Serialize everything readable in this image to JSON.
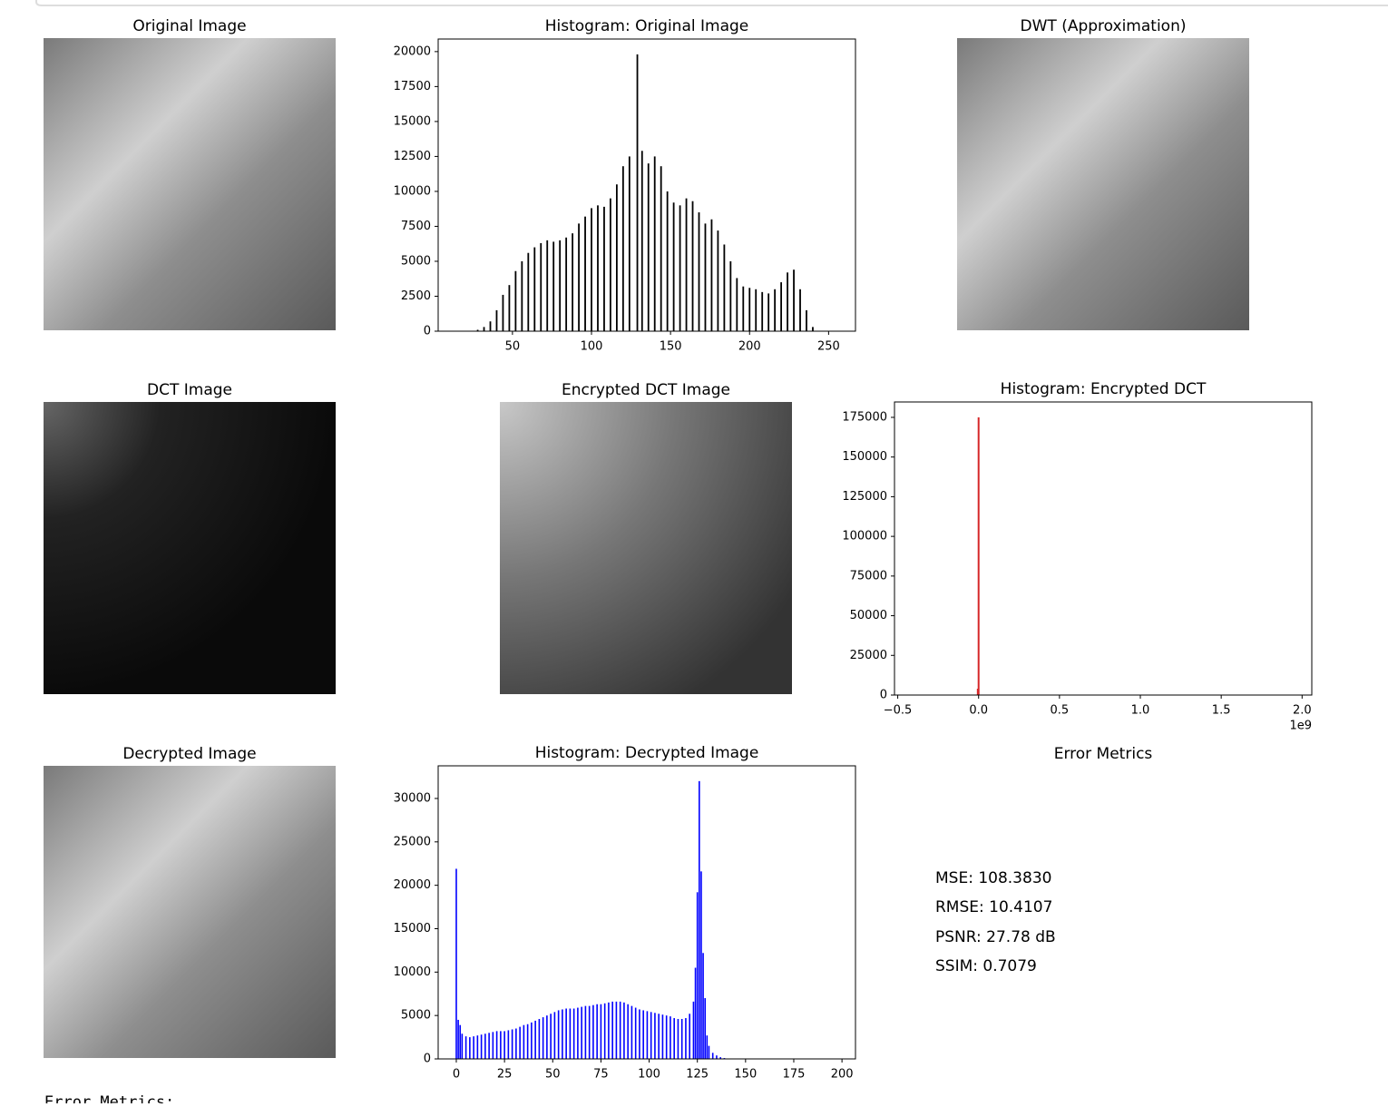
{
  "image_panels": [
    {
      "title": "Original Image"
    },
    {
      "title": "DWT (Approximation)"
    },
    {
      "title": "DCT Image"
    },
    {
      "title": "Encrypted DCT Image"
    },
    {
      "title": "Decrypted Image"
    }
  ],
  "chart_data": [
    {
      "type": "bar",
      "title": "Histogram: Original Image",
      "color": "#000000",
      "x": [
        28,
        32,
        36,
        40,
        44,
        48,
        52,
        56,
        60,
        64,
        68,
        72,
        76,
        80,
        84,
        88,
        92,
        96,
        100,
        104,
        108,
        112,
        116,
        120,
        124,
        129,
        132,
        136,
        140,
        144,
        148,
        152,
        156,
        160,
        164,
        168,
        172,
        176,
        180,
        184,
        188,
        192,
        196,
        200,
        204,
        208,
        212,
        216,
        220,
        224,
        228,
        232,
        236,
        240
      ],
      "values": [
        100,
        300,
        700,
        1500,
        2600,
        3300,
        4300,
        5000,
        5600,
        6000,
        6300,
        6500,
        6400,
        6500,
        6700,
        7000,
        7700,
        8200,
        8800,
        9000,
        8900,
        9500,
        10500,
        11800,
        12500,
        19800,
        12900,
        12000,
        12500,
        11800,
        10000,
        9200,
        9000,
        9500,
        9300,
        8500,
        7700,
        8000,
        7200,
        6200,
        5000,
        3800,
        3200,
        3100,
        3000,
        2800,
        2700,
        3000,
        3500,
        4200,
        4400,
        3000,
        1500,
        300
      ],
      "xlim": [
        3,
        267
      ],
      "ylim": [
        0,
        20900
      ],
      "xticks": [
        50,
        100,
        150,
        200,
        250
      ],
      "yticks": [
        0,
        2500,
        5000,
        7500,
        10000,
        12500,
        15000,
        17500,
        20000
      ]
    },
    {
      "type": "bar",
      "title": "Histogram: Encrypted DCT",
      "color": "#d62728",
      "x": [
        -0.005,
        0.0
      ],
      "values": [
        4000,
        175000
      ],
      "xlim": [
        -0.52,
        2.06
      ],
      "ylim": [
        0,
        184700
      ],
      "x_offset_label": "1e9",
      "xticks": [
        {
          "value": -0.5,
          "label": "−0.5"
        },
        {
          "value": 0,
          "label": "0.0"
        },
        0.5,
        {
          "value": 1,
          "label": "1.0"
        },
        1.5,
        {
          "value": 2,
          "label": "2.0"
        }
      ],
      "yticks": [
        0,
        25000,
        50000,
        75000,
        100000,
        125000,
        150000,
        175000
      ]
    },
    {
      "type": "bar",
      "title": "Histogram: Decrypted Image",
      "color": "#0000ff",
      "x": [
        0,
        1,
        2,
        3,
        5,
        7,
        9,
        11,
        13,
        15,
        17,
        19,
        21,
        23,
        25,
        27,
        29,
        31,
        33,
        35,
        37,
        39,
        41,
        43,
        45,
        47,
        49,
        51,
        53,
        55,
        57,
        59,
        61,
        63,
        65,
        67,
        69,
        71,
        73,
        75,
        77,
        79,
        81,
        83,
        85,
        87,
        89,
        91,
        93,
        95,
        97,
        99,
        101,
        103,
        105,
        107,
        109,
        111,
        113,
        115,
        117,
        119,
        121,
        123,
        124,
        125,
        126,
        127,
        128,
        129,
        130,
        131,
        133,
        135,
        137,
        139,
        141,
        143
      ],
      "values": [
        21900,
        4500,
        3900,
        2900,
        2600,
        2500,
        2600,
        2700,
        2800,
        2900,
        3000,
        3100,
        3200,
        3200,
        3200,
        3300,
        3400,
        3500,
        3700,
        3900,
        4000,
        4200,
        4400,
        4600,
        4800,
        5000,
        5200,
        5400,
        5600,
        5700,
        5800,
        5800,
        5800,
        5900,
        6000,
        6100,
        6100,
        6200,
        6300,
        6300,
        6400,
        6500,
        6600,
        6600,
        6600,
        6500,
        6300,
        6100,
        5900,
        5700,
        5600,
        5500,
        5400,
        5300,
        5200,
        5100,
        5000,
        4900,
        4700,
        4600,
        4600,
        4700,
        5200,
        6600,
        10500,
        19200,
        32000,
        21600,
        12200,
        7000,
        2700,
        1500,
        700,
        400,
        200,
        100,
        50,
        20
      ],
      "xlim": [
        -9.4,
        207
      ],
      "ylim": [
        0,
        33760
      ],
      "xticks": [
        0,
        25,
        50,
        75,
        100,
        125,
        150,
        175,
        200
      ],
      "yticks": [
        0,
        5000,
        10000,
        15000,
        20000,
        25000,
        30000
      ]
    }
  ],
  "metrics": {
    "title": "Error Metrics",
    "lines": [
      "MSE: 108.3830",
      "RMSE: 10.4107",
      "PSNR: 27.78 dB",
      "SSIM: 0.7079"
    ]
  },
  "output_text": "Error Metrics:"
}
